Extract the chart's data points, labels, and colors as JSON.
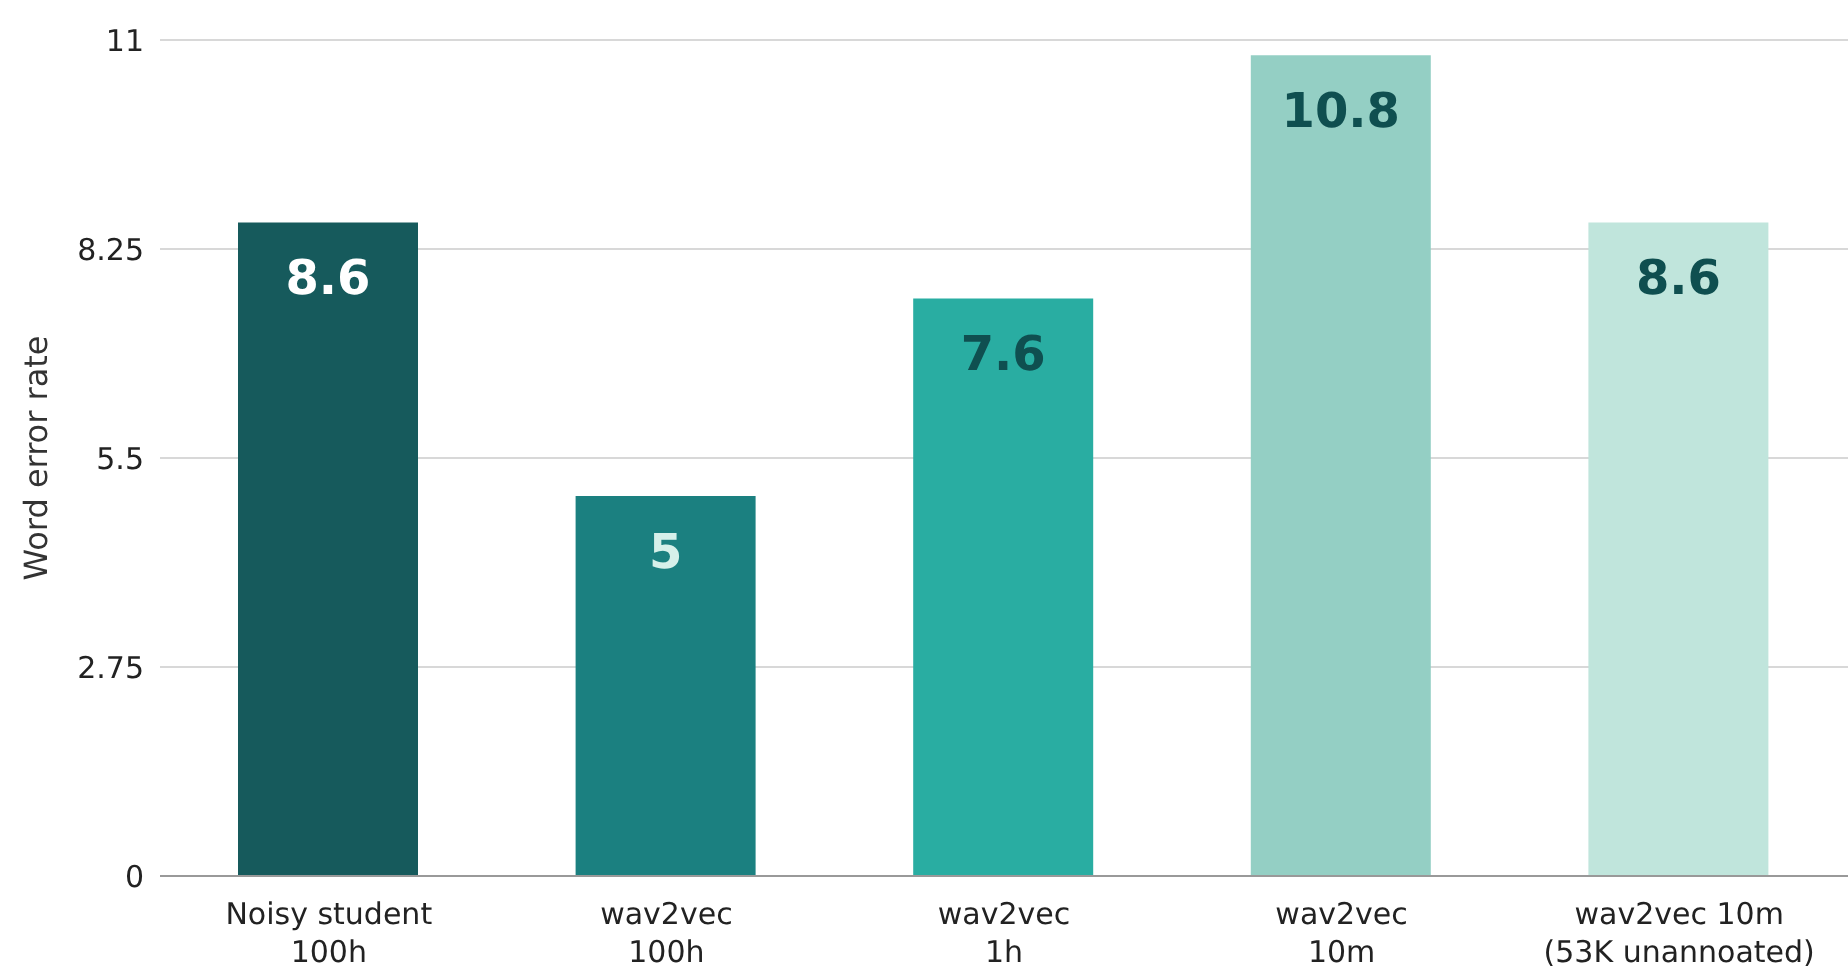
{
  "chart_data": {
    "type": "bar",
    "ylabel": "Word error rate",
    "categories": [
      "Noisy student\n100h",
      "wav2vec\n100h",
      "wav2vec\n1h",
      "wav2vec\n10m",
      "wav2vec 10m\n(53K unannoated)"
    ],
    "values": [
      8.6,
      5,
      7.6,
      10.8,
      8.6
    ],
    "colors": [
      "#165a5c",
      "#1b8080",
      "#29ada2",
      "#94cfc4",
      "#c0e5dc"
    ],
    "ylim": [
      0,
      11
    ],
    "yticks": [
      0,
      2.75,
      5.5,
      8.25,
      11
    ],
    "grid": "y",
    "data_labels": true
  }
}
